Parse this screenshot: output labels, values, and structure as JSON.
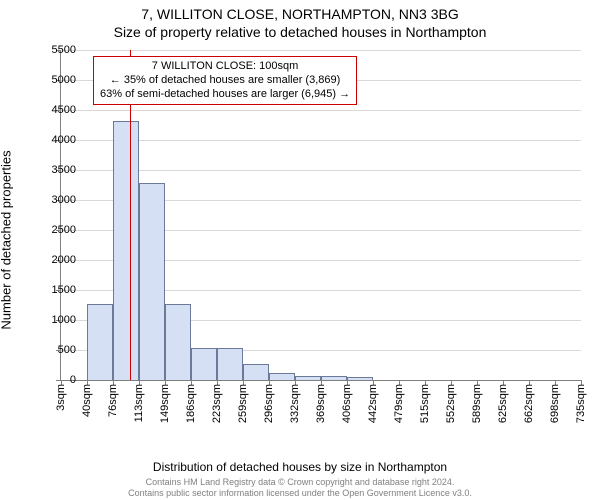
{
  "address_title": "7, WILLITON CLOSE, NORTHAMPTON, NN3 3BG",
  "subtitle": "Size of property relative to detached houses in Northampton",
  "yaxis_label": "Number of detached properties",
  "xaxis_label": "Distribution of detached houses by size in Northampton",
  "footer_line1": "Contains HM Land Registry data © Crown copyright and database right 2024.",
  "footer_line2": "Contains public sector information licensed under the Open Government Licence v3.0.",
  "chart": {
    "type": "histogram",
    "background_color": "#ffffff",
    "grid_color": "#d9d9d9",
    "axis_color": "#808080",
    "bar_fill": "#d6e0f5",
    "bar_stroke": "#6b7a99",
    "marker_color": "#cc0000",
    "annot_border": "#cc0000",
    "text_color": "#000000",
    "title_fontsize": 14,
    "label_fontsize": 13,
    "tick_fontsize": 11,
    "x_min": 3,
    "x_max": 735,
    "ylim": [
      0,
      5500
    ],
    "ytick_step": 500,
    "bin_width_sqm": 36.6,
    "bars": [
      {
        "x_start": 3,
        "count": 0
      },
      {
        "x_start": 40,
        "count": 1260
      },
      {
        "x_start": 76,
        "count": 4320
      },
      {
        "x_start": 113,
        "count": 3280
      },
      {
        "x_start": 149,
        "count": 1260
      },
      {
        "x_start": 186,
        "count": 540
      },
      {
        "x_start": 223,
        "count": 540
      },
      {
        "x_start": 259,
        "count": 260
      },
      {
        "x_start": 296,
        "count": 120
      },
      {
        "x_start": 332,
        "count": 70
      },
      {
        "x_start": 369,
        "count": 70
      },
      {
        "x_start": 406,
        "count": 50
      },
      {
        "x_start": 442,
        "count": 0
      },
      {
        "x_start": 479,
        "count": 0
      },
      {
        "x_start": 515,
        "count": 0
      },
      {
        "x_start": 552,
        "count": 0
      },
      {
        "x_start": 589,
        "count": 0
      },
      {
        "x_start": 625,
        "count": 0
      },
      {
        "x_start": 662,
        "count": 0
      },
      {
        "x_start": 698,
        "count": 0
      }
    ],
    "xticks": [
      3,
      40,
      76,
      113,
      149,
      186,
      223,
      259,
      296,
      332,
      369,
      406,
      442,
      479,
      515,
      552,
      589,
      625,
      662,
      698,
      735
    ],
    "marker_value_sqm": 100,
    "annotation": {
      "line1": "7 WILLITON CLOSE: 100sqm",
      "line2": "← 35% of detached houses are smaller (3,869)",
      "line3": "63% of semi-detached houses are larger (6,945) →"
    }
  }
}
